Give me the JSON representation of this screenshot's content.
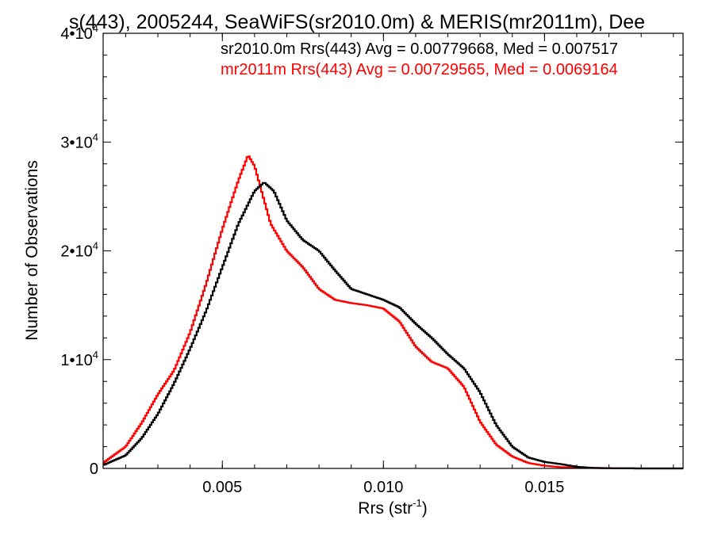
{
  "chart_data": {
    "type": "line",
    "title": "s(443), 2005244, SeaWiFS(sr2010.0m) & MERIS(mr2011m), Dee",
    "xlabel": "Rrs (str",
    "xlabel_sup": "-1",
    "xlabel_close": ")",
    "ylabel": "Number of Observations",
    "xlim": [
      0.0013,
      0.0193
    ],
    "ylim": [
      0,
      40000
    ],
    "x_ticks": [
      0.005,
      0.01,
      0.015
    ],
    "x_tick_labels": [
      "0.005",
      "0.010",
      "0.015"
    ],
    "y_ticks": [
      0,
      10000,
      20000,
      30000,
      40000
    ],
    "y_tick_labels": [
      {
        "base": "0",
        "exp": ""
      },
      {
        "base": "1•10",
        "exp": "4"
      },
      {
        "base": "2•10",
        "exp": "4"
      },
      {
        "base": "3•10",
        "exp": "4"
      },
      {
        "base": "4•10",
        "exp": "4"
      }
    ],
    "grid": false,
    "step": true,
    "annotations": [
      {
        "text": "sr2010.0m Rrs(443) Avg = 0.00779668, Med = 0.007517",
        "color": "#000000"
      },
      {
        "text": "mr2011m Rrs(443) Avg = 0.00729565, Med = 0.0069164",
        "color": "#ff0000"
      }
    ],
    "series": [
      {
        "color": "#000000",
        "x": [
          0.0013,
          0.002,
          0.0025,
          0.003,
          0.0035,
          0.004,
          0.0045,
          0.005,
          0.0055,
          0.006,
          0.0063,
          0.0066,
          0.007,
          0.0075,
          0.008,
          0.0085,
          0.009,
          0.0095,
          0.01,
          0.0105,
          0.011,
          0.0115,
          0.012,
          0.0125,
          0.013,
          0.0135,
          0.014,
          0.0145,
          0.015,
          0.0155,
          0.016,
          0.0165,
          0.017,
          0.018,
          0.0193
        ],
        "y": [
          300,
          1200,
          2800,
          5000,
          7800,
          11000,
          14500,
          18500,
          22500,
          25500,
          26300,
          25500,
          22800,
          21000,
          20000,
          18200,
          16500,
          16000,
          15500,
          14800,
          13300,
          12000,
          10500,
          9200,
          7000,
          4000,
          2000,
          1000,
          600,
          400,
          150,
          50,
          20,
          0,
          0
        ]
      },
      {
        "color": "#ff0000",
        "x": [
          0.0013,
          0.002,
          0.0025,
          0.003,
          0.0035,
          0.004,
          0.0045,
          0.005,
          0.0055,
          0.0058,
          0.006,
          0.0065,
          0.007,
          0.0075,
          0.008,
          0.0085,
          0.009,
          0.0095,
          0.01,
          0.0105,
          0.011,
          0.0115,
          0.012,
          0.0125,
          0.013,
          0.0135,
          0.014,
          0.0145,
          0.015,
          0.0155,
          0.016,
          0.017,
          0.018,
          0.0193
        ],
        "y": [
          500,
          2000,
          4200,
          6800,
          9000,
          12500,
          17000,
          22000,
          26500,
          28800,
          27800,
          22500,
          20000,
          18500,
          16500,
          15500,
          15200,
          15000,
          14700,
          13500,
          11200,
          9800,
          9200,
          7500,
          4300,
          2200,
          1100,
          500,
          250,
          120,
          60,
          20,
          0,
          0
        ]
      }
    ]
  }
}
